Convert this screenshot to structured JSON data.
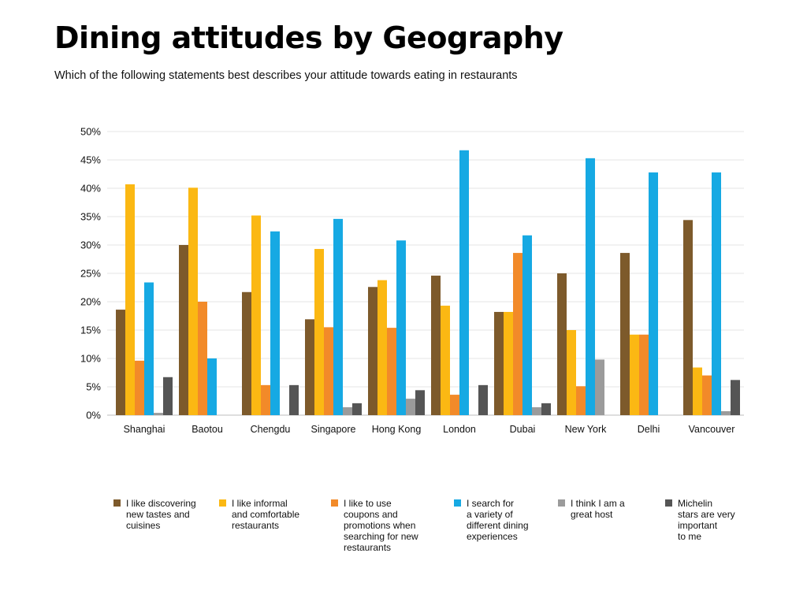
{
  "chart_data": {
    "type": "bar",
    "title": "Dining attitudes by Geography",
    "subtitle": "Which of the following statements best describes your attitude towards eating in restaurants",
    "xlabel": "",
    "ylabel": "",
    "ylim": [
      0,
      50
    ],
    "yticks": [
      0,
      5,
      10,
      15,
      20,
      25,
      30,
      35,
      40,
      45,
      50
    ],
    "ytick_labels": [
      "0%",
      "5%",
      "10%",
      "15%",
      "20%",
      "25%",
      "30%",
      "35%",
      "40%",
      "45%",
      "50%"
    ],
    "grid": true,
    "legend_position": "bottom",
    "categories": [
      "Shanghai",
      "Baotou",
      "Chengdu",
      "Singapore",
      "Hong Kong",
      "London",
      "Dubai",
      "New York",
      "Delhi",
      "Vancouver"
    ],
    "series": [
      {
        "name": "I like discovering new tastes and cuisines",
        "color": "#7d5a2b",
        "values": [
          18.6,
          30,
          21.7,
          16.9,
          22.6,
          24.6,
          18.2,
          25.0,
          28.6,
          34.4
        ]
      },
      {
        "name": "I like informal and comfortable restaurants",
        "color": "#fbb813",
        "values": [
          40.7,
          40.1,
          35.2,
          29.3,
          23.8,
          19.3,
          18.2,
          15.0,
          14.2,
          8.4
        ]
      },
      {
        "name": "I like to use coupons and promotions when searching for new restaurants",
        "color": "#f28a29",
        "values": [
          9.6,
          20.0,
          5.3,
          15.5,
          15.4,
          3.6,
          28.6,
          5.1,
          14.2,
          7.0
        ]
      },
      {
        "name": "I search for a variety of different dining experiences",
        "color": "#16a9e3",
        "values": [
          23.4,
          10.0,
          32.4,
          34.6,
          30.8,
          46.7,
          31.7,
          45.3,
          42.8,
          42.8
        ]
      },
      {
        "name": "I think I am a great host",
        "color": "#9b9b9b",
        "values": [
          0.4,
          0,
          0,
          1.4,
          2.9,
          0,
          1.4,
          9.8,
          0,
          0.7
        ]
      },
      {
        "name": "Michelin stars are very important to me",
        "color": "#555555",
        "values": [
          6.7,
          0,
          5.3,
          2.1,
          4.4,
          5.3,
          2.1,
          0,
          0,
          6.2
        ]
      }
    ]
  },
  "legend": [
    [
      "I like discovering",
      "new tastes and",
      "cuisines"
    ],
    [
      "I like informal",
      "and comfortable",
      "restaurants"
    ],
    [
      "I like to use",
      "coupons and",
      "promotions when",
      "searching for new",
      "restaurants"
    ],
    [
      "I search for",
      "a variety of",
      "different dining",
      "experiences"
    ],
    [
      "I think I am a",
      "great host"
    ],
    [
      "Michelin",
      "stars are very",
      "important",
      "to me"
    ]
  ]
}
